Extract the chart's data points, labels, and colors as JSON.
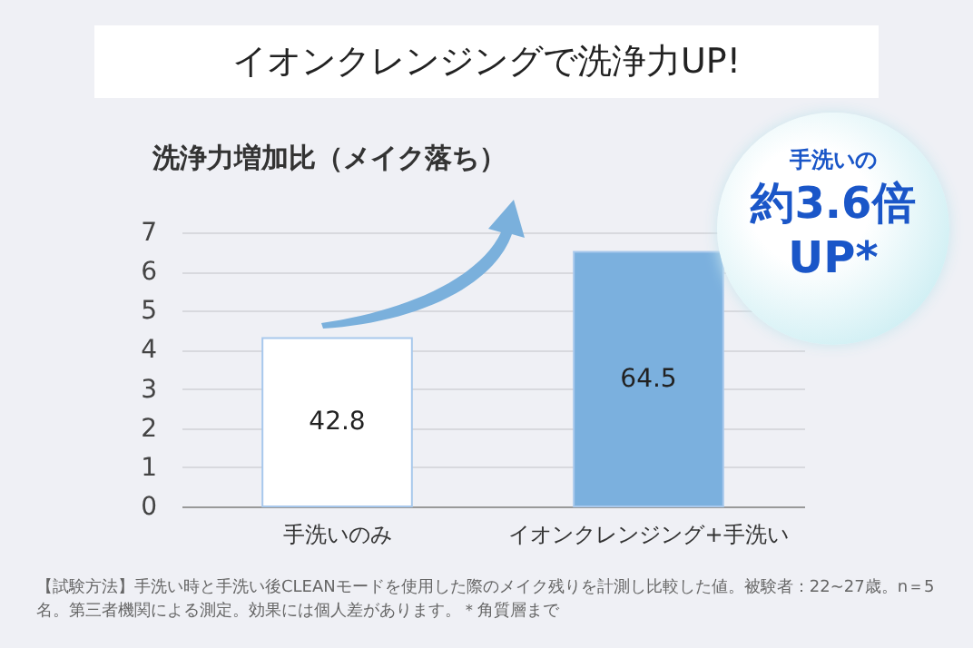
{
  "chart_data": {
    "type": "bar",
    "title": "イオンクレンジングで洗浄力UP!",
    "subtitle": "洗浄力増加比（メイク落ち）",
    "categories": [
      "手洗いのみ",
      "イオンクレンジング+手洗い"
    ],
    "values": [
      4.3,
      6.5
    ],
    "colors": [
      "#ffffff",
      "#7bb0de"
    ],
    "ylim": [
      0,
      7
    ],
    "yticks": [
      0,
      1,
      2,
      3,
      4,
      5,
      6,
      7
    ],
    "grid": "y",
    "annotations": [
      "手洗いの",
      "約3.6倍UP*",
      "【試験方法】手洗い時と手洗い後CLEANモードを使用した際のメイク残りを計測し比較した値。被験者：22~27歳。n＝5名。第三者機関による測定。効果には個人差があります。＊角質層まで",
      "42.8",
      "64.5"
    ]
  }
}
